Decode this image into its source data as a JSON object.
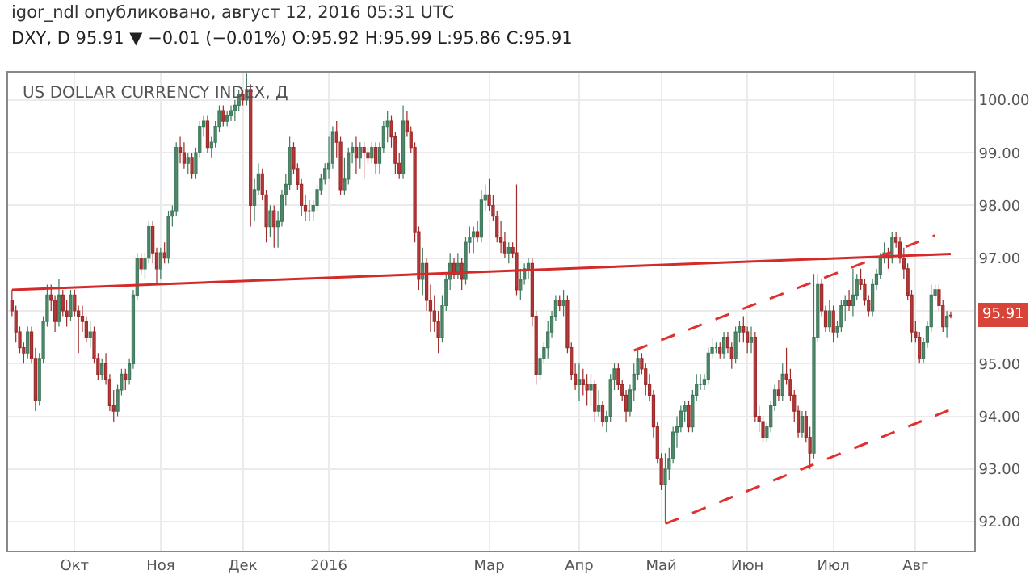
{
  "chart_data": {
    "type": "candlestick",
    "title": "US DOLLAR CURRENCY INDEX, Д",
    "subtitle": "DXY, D 95.91 ▼ −0.01 (−0.01%) O:95.92 H:95.99 L:95.86 C:95.91",
    "annotations": [
      "igor_ndl опубликовано, август 12, 2016 05:31 UTC",
      "95.91"
    ],
    "categories": [
      null,
      null,
      null,
      null,
      null,
      null,
      null,
      null,
      null,
      null,
      null,
      null,
      null,
      null,
      null,
      null,
      "Окт",
      null,
      null,
      null,
      null,
      null,
      null,
      null,
      null,
      null,
      null,
      null,
      null,
      null,
      null,
      null,
      null,
      null,
      null,
      null,
      null,
      null,
      "Ноя",
      null,
      null,
      null,
      null,
      null,
      null,
      null,
      null,
      null,
      null,
      null,
      null,
      null,
      null,
      null,
      null,
      null,
      null,
      null,
      null,
      "Дек",
      null,
      null,
      null,
      null,
      null,
      null,
      null,
      null,
      null,
      null,
      null,
      null,
      null,
      null,
      null,
      null,
      null,
      null,
      null,
      null,
      null,
      "2016",
      null,
      null,
      null,
      null,
      null,
      null,
      null,
      null,
      null,
      null,
      null,
      null,
      null,
      null,
      null,
      null,
      null,
      null,
      null,
      null,
      null,
      null,
      null,
      null,
      null,
      null,
      null,
      null,
      null,
      null,
      null,
      null,
      null,
      null,
      null,
      null,
      null,
      null,
      null,
      null,
      "Мар",
      null,
      null,
      null,
      null,
      null,
      null,
      null,
      null,
      null,
      null,
      null,
      null,
      null,
      null,
      null,
      null,
      null,
      null,
      null,
      null,
      null,
      null,
      "Апр",
      null,
      null,
      null,
      null,
      null,
      null,
      null,
      null,
      null,
      null,
      null,
      null,
      null,
      null,
      null,
      null,
      null,
      null,
      null,
      null,
      "Май",
      null,
      null,
      null,
      null,
      null,
      null,
      null,
      null,
      null,
      null,
      null,
      null,
      null,
      null,
      null,
      null,
      null,
      null,
      null,
      null,
      null,
      "Июн",
      null,
      null,
      null,
      null,
      null,
      null,
      null,
      null,
      null,
      null,
      null,
      null,
      null,
      null,
      null,
      null,
      null,
      null,
      null,
      null,
      null,
      "Июл",
      null,
      null,
      null,
      null,
      null,
      null,
      null,
      null,
      null,
      null,
      null,
      null,
      null,
      null,
      null,
      null,
      null,
      null,
      null,
      null,
      "Авг",
      null,
      null,
      null,
      null,
      null,
      null,
      null,
      null,
      null
    ],
    "ylim": [
      91.45,
      100.52
    ],
    "yticks": [
      {
        "value": 92,
        "label": "92.00"
      },
      {
        "value": 93,
        "label": "93.00"
      },
      {
        "value": 94,
        "label": "94.00"
      },
      {
        "value": 95,
        "label": "95.00"
      },
      {
        "value": 96,
        "label": null
      },
      {
        "value": 97,
        "label": "97.00"
      },
      {
        "value": 98,
        "label": "98.00"
      },
      {
        "value": 99,
        "label": "99.00"
      },
      {
        "value": 100,
        "label": "100.00"
      }
    ],
    "grid": true,
    "ohlc": [
      [
        96.2,
        96.4,
        95.9,
        96.0
      ],
      [
        96.0,
        96.1,
        95.4,
        95.6
      ],
      [
        95.6,
        95.7,
        95.2,
        95.3
      ],
      [
        95.3,
        95.4,
        95.0,
        95.2
      ],
      [
        95.2,
        95.7,
        95.1,
        95.6
      ],
      [
        95.6,
        95.7,
        95.0,
        95.1
      ],
      [
        95.1,
        95.3,
        94.1,
        94.3
      ],
      [
        94.3,
        95.2,
        94.2,
        95.1
      ],
      [
        95.1,
        95.9,
        95.0,
        95.8
      ],
      [
        95.8,
        96.5,
        95.7,
        96.3
      ],
      [
        96.3,
        96.5,
        96.0,
        96.2
      ],
      [
        96.2,
        96.3,
        95.6,
        95.8
      ],
      [
        95.8,
        96.6,
        95.7,
        96.3
      ],
      [
        96.3,
        96.4,
        95.9,
        96.0
      ],
      [
        96.0,
        96.2,
        95.7,
        95.9
      ],
      [
        95.9,
        96.4,
        95.8,
        96.3
      ],
      [
        96.3,
        96.4,
        95.9,
        96.0
      ],
      [
        96.0,
        96.1,
        95.2,
        95.9
      ],
      [
        95.9,
        96.1,
        95.6,
        95.8
      ],
      [
        95.8,
        95.9,
        95.4,
        95.5
      ],
      [
        95.5,
        95.8,
        95.3,
        95.6
      ],
      [
        95.6,
        95.7,
        95.0,
        95.1
      ],
      [
        95.1,
        95.2,
        94.7,
        94.8
      ],
      [
        94.8,
        95.1,
        94.7,
        95.0
      ],
      [
        95.0,
        95.2,
        94.6,
        94.7
      ],
      [
        94.7,
        94.8,
        94.1,
        94.2
      ],
      [
        94.2,
        94.5,
        93.9,
        94.1
      ],
      [
        94.1,
        94.6,
        94.0,
        94.5
      ],
      [
        94.5,
        94.9,
        94.4,
        94.8
      ],
      [
        94.8,
        94.9,
        94.5,
        94.7
      ],
      [
        94.7,
        95.1,
        94.6,
        95.0
      ],
      [
        95.0,
        96.4,
        94.9,
        96.3
      ],
      [
        96.3,
        97.1,
        96.2,
        97.0
      ],
      [
        97.0,
        97.1,
        96.7,
        96.8
      ],
      [
        96.8,
        97.1,
        96.6,
        97.0
      ],
      [
        97.0,
        97.7,
        96.9,
        97.6
      ],
      [
        97.6,
        97.7,
        96.9,
        97.1
      ],
      [
        97.1,
        97.2,
        96.5,
        96.8
      ],
      [
        96.8,
        97.2,
        96.6,
        97.1
      ],
      [
        97.1,
        97.3,
        96.9,
        97.0
      ],
      [
        97.0,
        97.9,
        96.9,
        97.8
      ],
      [
        97.8,
        98.0,
        97.6,
        97.9
      ],
      [
        97.9,
        99.2,
        97.8,
        99.1
      ],
      [
        99.1,
        99.3,
        98.8,
        99.0
      ],
      [
        99.0,
        99.2,
        98.7,
        98.8
      ],
      [
        98.8,
        99.0,
        98.6,
        98.9
      ],
      [
        98.9,
        99.0,
        98.5,
        98.6
      ],
      [
        98.6,
        99.1,
        98.5,
        99.0
      ],
      [
        99.0,
        99.6,
        98.9,
        99.5
      ],
      [
        99.5,
        99.7,
        99.3,
        99.6
      ],
      [
        99.6,
        99.7,
        99.0,
        99.1
      ],
      [
        99.1,
        99.3,
        98.9,
        99.2
      ],
      [
        99.2,
        99.6,
        99.1,
        99.5
      ],
      [
        99.5,
        99.9,
        99.4,
        99.8
      ],
      [
        99.8,
        99.9,
        99.5,
        99.6
      ],
      [
        99.6,
        99.8,
        99.5,
        99.7
      ],
      [
        99.7,
        99.9,
        99.6,
        99.8
      ],
      [
        99.8,
        100.0,
        99.6,
        99.9
      ],
      [
        99.9,
        100.2,
        99.8,
        100.1
      ],
      [
        100.1,
        100.2,
        99.9,
        100.0
      ],
      [
        100.0,
        100.5,
        99.9,
        100.2
      ],
      [
        100.2,
        100.3,
        97.6,
        98.0
      ],
      [
        98.0,
        98.5,
        97.7,
        98.3
      ],
      [
        98.3,
        98.8,
        98.2,
        98.6
      ],
      [
        98.6,
        98.7,
        98.1,
        98.2
      ],
      [
        98.2,
        98.3,
        97.3,
        97.6
      ],
      [
        97.6,
        98.0,
        97.4,
        97.9
      ],
      [
        97.9,
        98.0,
        97.2,
        97.6
      ],
      [
        97.6,
        97.9,
        97.2,
        97.7
      ],
      [
        97.7,
        98.3,
        97.6,
        98.2
      ],
      [
        98.2,
        98.6,
        98.0,
        98.4
      ],
      [
        98.4,
        99.3,
        98.3,
        99.1
      ],
      [
        99.1,
        99.2,
        98.6,
        98.7
      ],
      [
        98.7,
        98.8,
        98.3,
        98.4
      ],
      [
        98.4,
        98.5,
        97.8,
        98.0
      ],
      [
        98.0,
        98.2,
        97.7,
        97.9
      ],
      [
        97.9,
        98.1,
        97.7,
        97.9
      ],
      [
        97.9,
        98.1,
        97.7,
        98.0
      ],
      [
        98.0,
        98.4,
        97.9,
        98.3
      ],
      [
        98.3,
        98.6,
        98.2,
        98.5
      ],
      [
        98.5,
        98.8,
        98.4,
        98.7
      ],
      [
        98.7,
        99.3,
        98.5,
        98.8
      ],
      [
        98.8,
        99.5,
        98.7,
        99.4
      ],
      [
        99.4,
        99.6,
        98.9,
        99.2
      ],
      [
        99.2,
        99.3,
        98.2,
        98.3
      ],
      [
        98.3,
        98.9,
        98.2,
        98.5
      ],
      [
        98.5,
        99.1,
        98.4,
        99.0
      ],
      [
        99.0,
        99.2,
        98.8,
        99.1
      ],
      [
        99.1,
        99.3,
        98.6,
        98.9
      ],
      [
        98.9,
        99.2,
        98.7,
        99.1
      ],
      [
        99.1,
        99.2,
        98.5,
        99.0
      ],
      [
        99.0,
        99.1,
        98.8,
        98.9
      ],
      [
        98.9,
        99.2,
        98.8,
        99.1
      ],
      [
        99.1,
        99.2,
        98.6,
        98.8
      ],
      [
        98.8,
        99.2,
        98.6,
        99.1
      ],
      [
        99.1,
        99.6,
        99.0,
        99.5
      ],
      [
        99.5,
        99.8,
        99.2,
        99.6
      ],
      [
        99.6,
        99.7,
        99.1,
        99.3
      ],
      [
        99.3,
        99.4,
        98.6,
        98.8
      ],
      [
        98.8,
        99.0,
        98.5,
        98.6
      ],
      [
        98.6,
        99.9,
        98.5,
        99.6
      ],
      [
        99.6,
        99.8,
        99.3,
        99.4
      ],
      [
        99.4,
        99.5,
        99.0,
        99.1
      ],
      [
        99.1,
        99.2,
        97.3,
        97.5
      ],
      [
        97.5,
        97.6,
        96.4,
        96.6
      ],
      [
        96.6,
        97.2,
        96.3,
        96.9
      ],
      [
        96.9,
        97.0,
        96.0,
        96.2
      ],
      [
        96.2,
        96.5,
        95.6,
        96.0
      ],
      [
        96.0,
        96.3,
        95.6,
        95.8
      ],
      [
        95.8,
        96.0,
        95.2,
        95.5
      ],
      [
        95.5,
        96.3,
        95.4,
        96.1
      ],
      [
        96.1,
        96.7,
        96.0,
        96.6
      ],
      [
        96.6,
        97.1,
        96.4,
        96.9
      ],
      [
        96.9,
        97.0,
        96.6,
        96.7
      ],
      [
        96.7,
        97.1,
        96.6,
        96.9
      ],
      [
        96.9,
        97.0,
        96.4,
        96.6
      ],
      [
        96.6,
        97.4,
        96.5,
        97.3
      ],
      [
        97.3,
        97.6,
        97.1,
        97.4
      ],
      [
        97.4,
        97.6,
        97.1,
        97.5
      ],
      [
        97.5,
        97.7,
        97.3,
        97.4
      ],
      [
        97.4,
        98.3,
        97.3,
        98.1
      ],
      [
        98.1,
        98.4,
        97.9,
        98.2
      ],
      [
        98.2,
        98.5,
        97.9,
        98.0
      ],
      [
        98.0,
        98.2,
        97.7,
        97.8
      ],
      [
        97.8,
        97.9,
        97.3,
        97.4
      ],
      [
        97.4,
        97.7,
        97.1,
        97.3
      ],
      [
        97.3,
        97.5,
        97.0,
        97.1
      ],
      [
        97.1,
        97.3,
        96.9,
        97.2
      ],
      [
        97.2,
        97.3,
        97.0,
        97.1
      ],
      [
        97.1,
        98.4,
        96.3,
        96.4
      ],
      [
        96.4,
        96.8,
        96.2,
        96.6
      ],
      [
        96.6,
        96.9,
        96.5,
        96.8
      ],
      [
        96.8,
        97.0,
        96.6,
        96.9
      ],
      [
        96.9,
        97.0,
        95.7,
        95.9
      ],
      [
        95.9,
        96.0,
        94.6,
        94.8
      ],
      [
        94.8,
        95.2,
        94.7,
        95.1
      ],
      [
        95.1,
        95.4,
        95.0,
        95.3
      ],
      [
        95.3,
        95.8,
        95.1,
        95.6
      ],
      [
        95.6,
        96.0,
        95.5,
        95.9
      ],
      [
        95.9,
        96.3,
        95.8,
        96.2
      ],
      [
        96.2,
        96.3,
        96.0,
        96.1
      ],
      [
        96.1,
        96.4,
        95.9,
        96.2
      ],
      [
        96.2,
        96.3,
        95.2,
        95.3
      ],
      [
        95.3,
        95.4,
        94.7,
        94.8
      ],
      [
        94.8,
        95.0,
        94.5,
        94.6
      ],
      [
        94.6,
        95.0,
        94.3,
        94.7
      ],
      [
        94.7,
        94.9,
        94.4,
        94.6
      ],
      [
        94.6,
        94.8,
        94.2,
        94.5
      ],
      [
        94.5,
        94.8,
        94.2,
        94.6
      ],
      [
        94.6,
        94.7,
        93.9,
        94.1
      ],
      [
        94.1,
        94.5,
        94.0,
        94.2
      ],
      [
        94.2,
        94.3,
        93.8,
        93.9
      ],
      [
        93.9,
        94.1,
        93.7,
        94.0
      ],
      [
        94.0,
        94.8,
        93.9,
        94.7
      ],
      [
        94.7,
        95.0,
        94.5,
        94.9
      ],
      [
        94.9,
        95.0,
        94.5,
        94.6
      ],
      [
        94.6,
        94.7,
        94.3,
        94.4
      ],
      [
        94.4,
        94.5,
        93.9,
        94.1
      ],
      [
        94.1,
        94.6,
        94.0,
        94.5
      ],
      [
        94.5,
        95.0,
        94.3,
        94.8
      ],
      [
        94.8,
        95.3,
        94.7,
        95.1
      ],
      [
        95.1,
        95.2,
        94.8,
        94.9
      ],
      [
        94.9,
        95.0,
        94.4,
        94.6
      ],
      [
        94.6,
        94.8,
        94.3,
        94.4
      ],
      [
        94.4,
        94.5,
        93.6,
        93.8
      ],
      [
        93.8,
        93.9,
        93.1,
        93.2
      ],
      [
        93.2,
        93.3,
        92.6,
        92.7
      ],
      [
        92.7,
        93.3,
        92.0,
        93.0
      ],
      [
        93.0,
        93.4,
        92.8,
        93.2
      ],
      [
        93.2,
        93.8,
        93.1,
        93.7
      ],
      [
        93.7,
        94.0,
        93.4,
        93.8
      ],
      [
        93.8,
        94.2,
        93.7,
        94.1
      ],
      [
        94.1,
        94.3,
        93.9,
        94.2
      ],
      [
        94.2,
        94.3,
        93.7,
        93.8
      ],
      [
        93.8,
        94.5,
        93.7,
        94.4
      ],
      [
        94.4,
        94.8,
        94.3,
        94.6
      ],
      [
        94.6,
        94.8,
        94.5,
        94.6
      ],
      [
        94.6,
        94.8,
        94.5,
        94.7
      ],
      [
        94.7,
        95.3,
        94.6,
        95.2
      ],
      [
        95.2,
        95.5,
        95.1,
        95.3
      ],
      [
        95.3,
        95.4,
        95.2,
        95.3
      ],
      [
        95.3,
        95.4,
        95.1,
        95.2
      ],
      [
        95.2,
        95.6,
        95.1,
        95.5
      ],
      [
        95.5,
        95.6,
        95.2,
        95.3
      ],
      [
        95.3,
        95.4,
        94.9,
        95.1
      ],
      [
        95.1,
        95.7,
        95.0,
        95.6
      ],
      [
        95.6,
        95.8,
        95.4,
        95.7
      ],
      [
        95.7,
        95.9,
        95.4,
        95.6
      ],
      [
        95.6,
        95.7,
        95.2,
        95.4
      ],
      [
        95.4,
        95.7,
        95.2,
        95.5
      ],
      [
        95.5,
        95.6,
        93.9,
        94.0
      ],
      [
        94.0,
        94.2,
        93.7,
        93.9
      ],
      [
        93.9,
        94.0,
        93.5,
        93.6
      ],
      [
        93.6,
        93.9,
        93.5,
        93.8
      ],
      [
        93.8,
        94.3,
        93.7,
        94.2
      ],
      [
        94.2,
        94.6,
        94.1,
        94.5
      ],
      [
        94.5,
        94.7,
        94.3,
        94.4
      ],
      [
        94.4,
        95.0,
        94.3,
        94.8
      ],
      [
        94.8,
        95.3,
        94.6,
        94.7
      ],
      [
        94.7,
        94.9,
        94.3,
        94.4
      ],
      [
        94.4,
        94.5,
        93.9,
        94.1
      ],
      [
        94.1,
        94.2,
        93.6,
        93.7
      ],
      [
        93.7,
        94.1,
        93.6,
        94.0
      ],
      [
        94.0,
        94.1,
        93.5,
        93.6
      ],
      [
        93.6,
        93.8,
        93.0,
        93.3
      ],
      [
        93.3,
        96.7,
        93.2,
        95.5
      ],
      [
        95.5,
        96.7,
        95.4,
        96.5
      ],
      [
        96.5,
        96.6,
        95.9,
        96.0
      ],
      [
        96.0,
        96.1,
        95.6,
        95.7
      ],
      [
        95.7,
        96.2,
        95.6,
        96.0
      ],
      [
        96.0,
        96.1,
        95.4,
        95.6
      ],
      [
        95.6,
        95.8,
        95.5,
        95.7
      ],
      [
        95.7,
        96.2,
        95.6,
        96.1
      ],
      [
        96.1,
        96.3,
        95.8,
        96.2
      ],
      [
        96.2,
        96.4,
        96.0,
        96.1
      ],
      [
        96.1,
        96.8,
        95.9,
        96.3
      ],
      [
        96.3,
        96.7,
        96.2,
        96.6
      ],
      [
        96.6,
        96.8,
        96.4,
        96.5
      ],
      [
        96.5,
        96.6,
        96.1,
        96.2
      ],
      [
        96.2,
        96.3,
        95.9,
        96.0
      ],
      [
        96.0,
        96.6,
        95.9,
        96.5
      ],
      [
        96.5,
        96.8,
        96.4,
        96.7
      ],
      [
        96.7,
        97.1,
        96.6,
        97.0
      ],
      [
        97.0,
        97.3,
        96.9,
        97.1
      ],
      [
        97.1,
        97.2,
        96.8,
        97.0
      ],
      [
        97.0,
        97.5,
        96.9,
        97.4
      ],
      [
        97.4,
        97.5,
        97.2,
        97.3
      ],
      [
        97.3,
        97.4,
        96.9,
        97.0
      ],
      [
        97.0,
        97.2,
        96.6,
        96.8
      ],
      [
        96.8,
        96.9,
        96.2,
        96.3
      ],
      [
        96.3,
        96.4,
        95.4,
        95.6
      ],
      [
        95.6,
        95.8,
        95.4,
        95.5
      ],
      [
        95.5,
        95.6,
        95.0,
        95.1
      ],
      [
        95.1,
        95.5,
        95.0,
        95.4
      ],
      [
        95.4,
        95.8,
        95.3,
        95.7
      ],
      [
        95.7,
        96.5,
        95.6,
        96.3
      ],
      [
        96.3,
        96.5,
        96.2,
        96.4
      ],
      [
        96.4,
        96.5,
        96.0,
        96.1
      ],
      [
        96.1,
        96.2,
        95.6,
        95.7
      ],
      [
        95.7,
        96.0,
        95.5,
        95.9
      ],
      [
        95.92,
        95.99,
        95.86,
        95.91
      ]
    ],
    "series": [
      {
        "type": "line",
        "color": "#d42a2a",
        "line_style": "solid",
        "values": [
          96.4,
          null,
          null,
          null,
          null,
          null,
          null,
          null,
          null,
          null,
          null,
          null,
          null,
          null,
          null,
          null,
          null,
          null,
          null,
          null,
          null,
          null,
          null,
          null,
          null,
          null,
          null,
          null,
          null,
          null,
          null,
          null,
          null,
          null,
          null,
          null,
          null,
          null,
          null,
          null,
          null,
          null,
          null,
          null,
          null,
          null,
          null,
          null,
          null,
          null,
          null,
          null,
          null,
          null,
          null,
          null,
          null,
          null,
          null,
          null,
          null,
          null,
          null,
          null,
          null,
          null,
          null,
          null,
          null,
          null,
          null,
          null,
          null,
          null,
          null,
          null,
          null,
          null,
          null,
          null,
          null,
          null,
          null,
          null,
          null,
          null,
          null,
          null,
          null,
          null,
          null,
          null,
          null,
          null,
          null,
          null,
          null,
          null,
          null,
          null,
          null,
          null,
          null,
          null,
          null,
          null,
          null,
          null,
          null,
          null,
          null,
          null,
          null,
          null,
          null,
          null,
          null,
          null,
          null,
          null,
          null,
          null,
          null,
          null,
          null,
          null,
          null,
          null,
          null,
          null,
          null,
          null,
          null,
          null,
          null,
          null,
          null,
          null,
          null,
          null,
          null,
          null,
          null,
          null,
          null,
          null,
          null,
          null,
          null,
          null,
          null,
          null,
          null,
          null,
          null,
          null,
          null,
          null,
          null,
          null,
          null,
          null,
          null,
          null,
          null,
          null,
          null,
          null,
          null,
          null,
          null,
          null,
          null,
          null,
          null,
          null,
          null,
          null,
          null,
          null,
          null,
          null,
          null,
          null,
          null,
          null,
          null,
          null,
          null,
          null,
          null,
          null,
          null,
          null,
          null,
          null,
          null,
          null,
          null,
          null,
          null,
          null,
          null,
          null,
          null,
          null,
          null,
          null,
          null,
          null,
          null,
          null,
          null,
          null,
          null,
          null,
          null,
          null,
          null,
          null,
          null,
          null,
          null,
          null,
          null,
          null,
          null,
          null,
          null,
          null,
          null,
          null,
          null,
          null,
          null,
          null,
          null,
          null,
          null,
          null,
          97.08
        ]
      },
      {
        "type": "line",
        "color": "#e03030",
        "line_style": "dashed",
        "values": [
          null,
          null,
          null,
          null,
          null,
          null,
          null,
          null,
          null,
          null,
          null,
          null,
          null,
          null,
          null,
          null,
          null,
          null,
          null,
          null,
          null,
          null,
          null,
          null,
          null,
          null,
          null,
          null,
          null,
          null,
          null,
          null,
          null,
          null,
          null,
          null,
          null,
          null,
          null,
          null,
          null,
          null,
          null,
          null,
          null,
          null,
          null,
          null,
          null,
          null,
          null,
          null,
          null,
          null,
          null,
          null,
          null,
          null,
          null,
          null,
          null,
          null,
          null,
          null,
          null,
          null,
          null,
          null,
          null,
          null,
          null,
          null,
          null,
          null,
          null,
          null,
          null,
          null,
          null,
          null,
          null,
          null,
          null,
          null,
          null,
          null,
          null,
          null,
          null,
          null,
          null,
          null,
          null,
          null,
          null,
          null,
          null,
          null,
          null,
          null,
          null,
          null,
          null,
          null,
          null,
          null,
          null,
          null,
          null,
          null,
          null,
          null,
          null,
          null,
          null,
          null,
          null,
          null,
          null,
          null,
          null,
          null,
          null,
          null,
          null,
          null,
          null,
          null,
          null,
          null,
          null,
          null,
          null,
          null,
          null,
          null,
          null,
          null,
          null,
          null,
          null,
          null,
          null,
          null,
          null,
          null,
          null,
          null,
          null,
          null,
          null,
          null,
          null,
          null,
          null,
          null,
          null,
          null,
          null,
          95.25,
          null,
          null,
          null,
          null,
          null,
          null,
          null,
          null,
          null,
          null,
          null,
          null,
          null,
          null,
          null,
          null,
          null,
          null,
          null,
          null,
          null,
          null,
          null,
          null,
          null,
          null,
          null,
          null,
          null,
          null,
          null,
          null,
          null,
          null,
          null,
          null,
          null,
          null,
          null,
          null,
          null,
          null,
          null,
          null,
          null,
          null,
          null,
          null,
          null,
          null,
          null,
          null,
          null,
          null,
          null,
          null,
          null,
          null,
          null,
          null,
          null,
          null,
          null,
          null,
          null,
          null,
          null,
          null,
          null,
          null,
          null,
          null,
          null,
          null,
          null,
          null,
          97.43,
          null,
          null,
          null,
          null
        ]
      },
      {
        "type": "line",
        "color": "#e03030",
        "line_style": "dashed",
        "values": [
          null,
          null,
          null,
          null,
          null,
          null,
          null,
          null,
          null,
          null,
          null,
          null,
          null,
          null,
          null,
          null,
          null,
          null,
          null,
          null,
          null,
          null,
          null,
          null,
          null,
          null,
          null,
          null,
          null,
          null,
          null,
          null,
          null,
          null,
          null,
          null,
          null,
          null,
          null,
          null,
          null,
          null,
          null,
          null,
          null,
          null,
          null,
          null,
          null,
          null,
          null,
          null,
          null,
          null,
          null,
          null,
          null,
          null,
          null,
          null,
          null,
          null,
          null,
          null,
          null,
          null,
          null,
          null,
          null,
          null,
          null,
          null,
          null,
          null,
          null,
          null,
          null,
          null,
          null,
          null,
          null,
          null,
          null,
          null,
          null,
          null,
          null,
          null,
          null,
          null,
          null,
          null,
          null,
          null,
          null,
          null,
          null,
          null,
          null,
          null,
          null,
          null,
          null,
          null,
          null,
          null,
          null,
          null,
          null,
          null,
          null,
          null,
          null,
          null,
          null,
          null,
          null,
          null,
          null,
          null,
          null,
          null,
          null,
          null,
          null,
          null,
          null,
          null,
          null,
          null,
          null,
          null,
          null,
          null,
          null,
          null,
          null,
          null,
          null,
          null,
          null,
          null,
          null,
          null,
          null,
          null,
          null,
          null,
          null,
          null,
          null,
          null,
          null,
          null,
          null,
          null,
          null,
          null,
          null,
          null,
          null,
          null,
          null,
          null,
          null,
          null,
          null,
          91.96,
          null,
          null,
          null,
          null,
          null,
          null,
          null,
          null,
          null,
          null,
          null,
          null,
          null,
          null,
          null,
          null,
          null,
          null,
          null,
          null,
          null,
          null,
          null,
          null,
          null,
          null,
          null,
          null,
          null,
          null,
          null,
          null,
          null,
          null,
          null,
          null,
          null,
          null,
          null,
          null,
          null,
          null,
          null,
          null,
          null,
          null,
          null,
          null,
          null,
          null,
          null,
          null,
          null,
          null,
          null,
          null,
          null,
          null,
          null,
          null,
          null,
          null,
          null,
          null,
          null,
          null,
          null,
          null,
          null,
          null,
          null,
          null,
          94.13
        ]
      }
    ]
  }
}
